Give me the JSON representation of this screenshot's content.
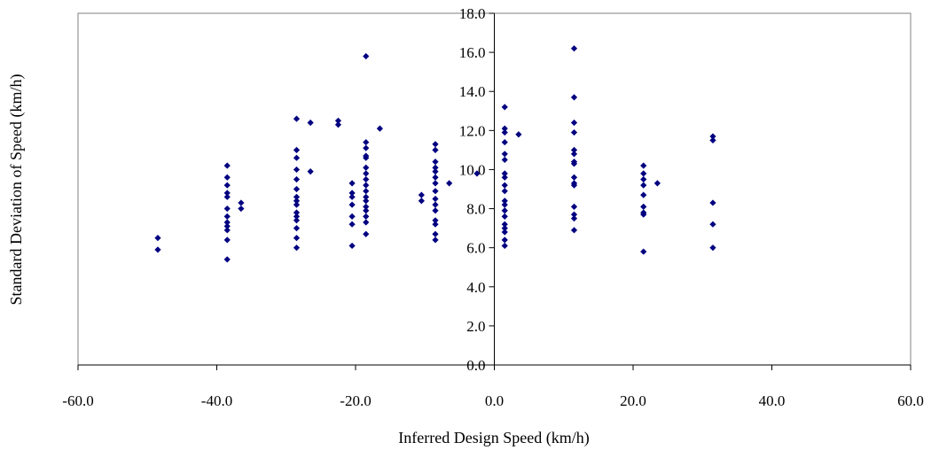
{
  "chart_data": {
    "type": "scatter",
    "title": "",
    "xlabel": "Inferred Design Speed (km/h)",
    "ylabel": "Standard Deviation of Speed (km/h)",
    "xlim": [
      -60,
      60
    ],
    "ylim": [
      0,
      18
    ],
    "x_ticks": [
      -60,
      -40,
      -20,
      0,
      20,
      40,
      60
    ],
    "x_tick_labels": [
      "-60.0",
      "-40.0",
      "-20.0",
      "0.0",
      "20.0",
      "40.0",
      "60.0"
    ],
    "y_ticks": [
      0,
      2,
      4,
      6,
      8,
      10,
      12,
      14,
      16,
      18
    ],
    "y_tick_labels": [
      "0.0",
      "2.0",
      "4.0",
      "6.0",
      "8.0",
      "10.0",
      "12.0",
      "14.0",
      "16.0",
      "18.0"
    ],
    "grid": false,
    "legend": "none",
    "marker_color": "#000080",
    "series": [
      {
        "points": [
          [
            -48.5,
            6.5
          ],
          [
            -48.5,
            5.9
          ],
          [
            -38.5,
            10.2
          ],
          [
            -38.5,
            9.6
          ],
          [
            -38.5,
            9.2
          ],
          [
            -38.5,
            8.8
          ],
          [
            -38.5,
            8.6
          ],
          [
            -38.5,
            8.0
          ],
          [
            -38.5,
            7.6
          ],
          [
            -38.5,
            7.3
          ],
          [
            -38.5,
            7.1
          ],
          [
            -38.5,
            6.9
          ],
          [
            -38.5,
            6.4
          ],
          [
            -38.5,
            5.4
          ],
          [
            -36.5,
            8.3
          ],
          [
            -36.5,
            8.0
          ],
          [
            -28.5,
            12.6
          ],
          [
            -28.5,
            11.0
          ],
          [
            -28.5,
            10.6
          ],
          [
            -28.5,
            10.0
          ],
          [
            -28.5,
            9.5
          ],
          [
            -28.5,
            9.0
          ],
          [
            -28.5,
            8.6
          ],
          [
            -28.5,
            8.4
          ],
          [
            -28.5,
            8.2
          ],
          [
            -28.5,
            7.8
          ],
          [
            -28.5,
            7.6
          ],
          [
            -28.5,
            7.4
          ],
          [
            -28.5,
            7.0
          ],
          [
            -28.5,
            6.5
          ],
          [
            -28.5,
            6.0
          ],
          [
            -26.5,
            12.4
          ],
          [
            -26.5,
            9.9
          ],
          [
            -22.5,
            12.5
          ],
          [
            -22.5,
            12.3
          ],
          [
            -20.5,
            9.3
          ],
          [
            -20.5,
            8.8
          ],
          [
            -20.5,
            8.6
          ],
          [
            -20.5,
            8.2
          ],
          [
            -20.5,
            7.6
          ],
          [
            -20.5,
            7.2
          ],
          [
            -20.5,
            6.1
          ],
          [
            -18.5,
            15.8
          ],
          [
            -18.5,
            11.4
          ],
          [
            -18.5,
            11.1
          ],
          [
            -18.5,
            10.7
          ],
          [
            -18.5,
            10.6
          ],
          [
            -18.5,
            10.1
          ],
          [
            -18.5,
            9.8
          ],
          [
            -18.5,
            9.5
          ],
          [
            -18.5,
            9.2
          ],
          [
            -18.5,
            8.9
          ],
          [
            -18.5,
            8.6
          ],
          [
            -18.5,
            8.4
          ],
          [
            -18.5,
            8.1
          ],
          [
            -18.5,
            7.9
          ],
          [
            -18.5,
            7.6
          ],
          [
            -18.5,
            7.3
          ],
          [
            -18.5,
            6.7
          ],
          [
            -16.5,
            12.1
          ],
          [
            -10.5,
            8.7
          ],
          [
            -10.5,
            8.4
          ],
          [
            -8.5,
            11.3
          ],
          [
            -8.5,
            11.0
          ],
          [
            -8.5,
            10.4
          ],
          [
            -8.5,
            10.1
          ],
          [
            -8.5,
            9.9
          ],
          [
            -8.5,
            9.6
          ],
          [
            -8.5,
            9.3
          ],
          [
            -8.5,
            8.9
          ],
          [
            -8.5,
            8.5
          ],
          [
            -8.5,
            8.2
          ],
          [
            -8.5,
            7.9
          ],
          [
            -8.5,
            7.4
          ],
          [
            -8.5,
            7.2
          ],
          [
            -8.5,
            6.7
          ],
          [
            -8.5,
            6.4
          ],
          [
            -6.5,
            9.3
          ],
          [
            -2.5,
            9.8
          ],
          [
            1.5,
            13.2
          ],
          [
            1.5,
            12.1
          ],
          [
            1.5,
            11.9
          ],
          [
            1.5,
            11.4
          ],
          [
            1.5,
            10.8
          ],
          [
            1.5,
            10.5
          ],
          [
            1.5,
            9.8
          ],
          [
            1.5,
            9.6
          ],
          [
            1.5,
            9.2
          ],
          [
            1.5,
            8.9
          ],
          [
            1.5,
            8.4
          ],
          [
            1.5,
            8.2
          ],
          [
            1.5,
            7.9
          ],
          [
            1.5,
            7.6
          ],
          [
            1.5,
            7.2
          ],
          [
            1.5,
            7.0
          ],
          [
            1.5,
            6.8
          ],
          [
            1.5,
            6.4
          ],
          [
            1.5,
            6.1
          ],
          [
            3.5,
            11.8
          ],
          [
            11.5,
            16.2
          ],
          [
            11.5,
            13.7
          ],
          [
            11.5,
            12.4
          ],
          [
            11.5,
            11.9
          ],
          [
            11.5,
            11.0
          ],
          [
            11.5,
            10.8
          ],
          [
            11.5,
            10.4
          ],
          [
            11.5,
            10.3
          ],
          [
            11.5,
            9.6
          ],
          [
            11.5,
            9.3
          ],
          [
            11.5,
            9.2
          ],
          [
            11.5,
            8.1
          ],
          [
            11.5,
            7.7
          ],
          [
            11.5,
            7.5
          ],
          [
            11.5,
            6.9
          ],
          [
            21.5,
            10.2
          ],
          [
            21.5,
            9.8
          ],
          [
            21.5,
            9.5
          ],
          [
            21.5,
            9.2
          ],
          [
            21.5,
            8.7
          ],
          [
            21.5,
            8.1
          ],
          [
            21.5,
            7.8
          ],
          [
            21.5,
            7.7
          ],
          [
            21.5,
            5.8
          ],
          [
            23.5,
            9.3
          ],
          [
            31.5,
            11.7
          ],
          [
            31.5,
            11.5
          ],
          [
            31.5,
            8.3
          ],
          [
            31.5,
            7.2
          ],
          [
            31.5,
            6.0
          ]
        ]
      }
    ]
  }
}
